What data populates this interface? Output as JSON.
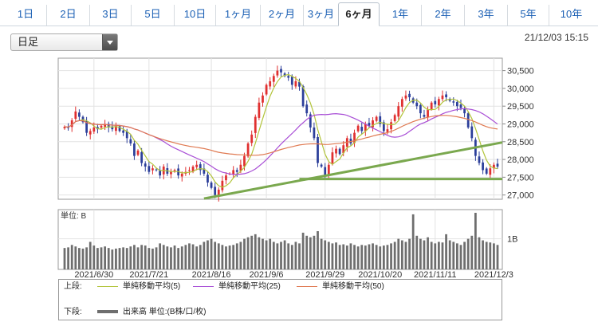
{
  "tabs": [
    {
      "label": "1日",
      "active": false
    },
    {
      "label": "2日",
      "active": false
    },
    {
      "label": "3日",
      "active": false
    },
    {
      "label": "5日",
      "active": false
    },
    {
      "label": "10日",
      "active": false
    },
    {
      "label": "1ヶ月",
      "active": false
    },
    {
      "label": "2ヶ月",
      "active": false
    },
    {
      "label": "3ヶ月",
      "active": false
    },
    {
      "label": "6ヶ月",
      "active": true
    },
    {
      "label": "1年",
      "active": false
    },
    {
      "label": "2年",
      "active": false
    },
    {
      "label": "3年",
      "active": false
    },
    {
      "label": "5年",
      "active": false
    },
    {
      "label": "10年",
      "active": false
    }
  ],
  "bar_type_select": {
    "value": "日足"
  },
  "timestamp": "21/12/03 15:15",
  "volume_unit_label": "単位: B",
  "colors": {
    "up": "#e03030",
    "down": "#2c3f9a",
    "ma5": "#b2c43a",
    "ma25": "#a94fd6",
    "ma50": "#e07a52",
    "trend": "#7aa84e",
    "volume": "#6e6e6e"
  },
  "legend": {
    "upper_label": "上段:",
    "lower_label": "下段:",
    "items": [
      {
        "name": "単純移動平均(5)",
        "color": "#b2c43a"
      },
      {
        "name": "単純移動平均(25)",
        "color": "#a94fd6"
      },
      {
        "name": "単純移動平均(50)",
        "color": "#e07a52"
      }
    ],
    "volume_item": "出来高 単位:(B株/口/枚)"
  },
  "chart_data": {
    "type": "candlestick",
    "y_ticks": [
      27000,
      27500,
      28000,
      28500,
      29000,
      29500,
      30000,
      30500
    ],
    "y_tick_labels": [
      "27,000",
      "27,500",
      "28,000",
      "28,500",
      "29,000",
      "29,500",
      "30,000",
      "30,500"
    ],
    "ylim": [
      26880,
      30850
    ],
    "vol_tick": {
      "value": 1.0,
      "label": "1B"
    },
    "vol_max": 1.85,
    "x_labels": [
      {
        "i": 8,
        "label": "2021/6/30"
      },
      {
        "i": 23,
        "label": "2021/7/21"
      },
      {
        "i": 40,
        "label": "2021/8/16"
      },
      {
        "i": 55,
        "label": "2021/9/6"
      },
      {
        "i": 71,
        "label": "2021/9/29"
      },
      {
        "i": 86,
        "label": "2021/10/20"
      },
      {
        "i": 101,
        "label": "2021/11/11"
      },
      {
        "i": 117,
        "label": "2021/12/3"
      }
    ],
    "close": [
      28920,
      28900,
      29100,
      29350,
      29200,
      29050,
      28750,
      28800,
      28900,
      28850,
      28950,
      29000,
      28900,
      28850,
      28950,
      28800,
      28750,
      28600,
      28450,
      28100,
      28250,
      27900,
      27800,
      27650,
      27750,
      27700,
      27550,
      27800,
      27600,
      27650,
      27700,
      27550,
      27600,
      27650,
      27700,
      27800,
      27850,
      27700,
      27600,
      27350,
      27200,
      27000,
      27150,
      27400,
      27550,
      27600,
      27700,
      27650,
      27850,
      28100,
      28450,
      28700,
      29200,
      29600,
      29800,
      30100,
      30200,
      30350,
      30500,
      30450,
      30350,
      30300,
      30100,
      30200,
      30050,
      29500,
      29300,
      28900,
      28600,
      27900,
      27800,
      27550,
      27850,
      28200,
      28300,
      28150,
      28400,
      28600,
      28450,
      28750,
      28950,
      28800,
      29000,
      28950,
      29100,
      29200,
      29000,
      28800,
      28850,
      29050,
      29250,
      29500,
      29700,
      29800,
      29750,
      29600,
      29500,
      29300,
      29200,
      29400,
      29600,
      29550,
      29700,
      29800,
      29750,
      29650,
      29600,
      29500,
      29450,
      29300,
      28900,
      28600,
      28100,
      27900,
      27700,
      27600,
      27750,
      27850,
      27800
    ],
    "volume": [
      0.7,
      0.72,
      0.8,
      0.75,
      0.7,
      0.68,
      0.72,
      0.9,
      0.78,
      0.7,
      0.72,
      0.75,
      0.7,
      0.65,
      0.68,
      0.7,
      0.72,
      0.7,
      0.75,
      0.8,
      0.72,
      0.8,
      0.78,
      0.7,
      0.68,
      0.72,
      0.85,
      0.8,
      0.75,
      0.72,
      0.78,
      0.7,
      0.75,
      0.8,
      0.85,
      0.82,
      0.75,
      0.8,
      0.9,
      0.95,
      1.0,
      0.9,
      0.85,
      0.8,
      0.75,
      0.78,
      0.8,
      0.85,
      0.9,
      1.0,
      1.05,
      1.1,
      1.15,
      1.05,
      1.0,
      0.95,
      1.0,
      0.9,
      0.85,
      0.9,
      0.95,
      0.85,
      0.8,
      0.9,
      0.85,
      1.2,
      1.1,
      1.05,
      1.1,
      1.25,
      1.0,
      0.95,
      0.9,
      0.85,
      0.88,
      0.8,
      0.82,
      0.78,
      0.85,
      0.8,
      0.75,
      0.8,
      0.78,
      0.82,
      0.85,
      0.8,
      0.75,
      0.78,
      0.8,
      0.85,
      0.9,
      1.0,
      0.95,
      0.9,
      1.0,
      1.8,
      1.1,
      1.0,
      0.95,
      1.05,
      0.9,
      0.85,
      0.9,
      0.88,
      1.15,
      0.95,
      0.9,
      0.85,
      0.8,
      0.9,
      1.0,
      1.1,
      1.85,
      1.05,
      0.95,
      0.9,
      0.88,
      0.85,
      0.8
    ]
  }
}
